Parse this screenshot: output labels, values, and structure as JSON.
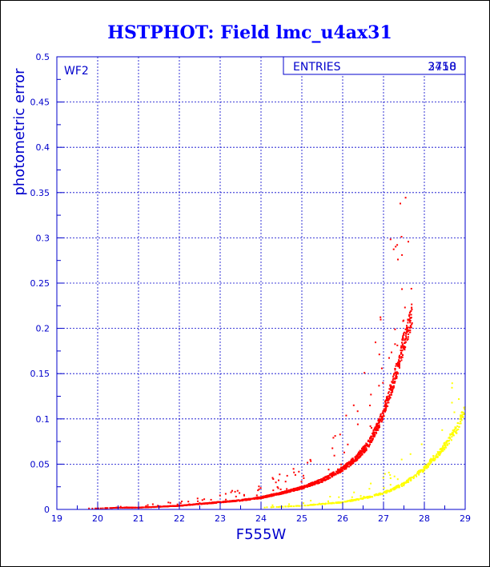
{
  "chart_data": {
    "type": "scatter",
    "title": "HSTPHOT: Field lmc_u4ax31",
    "xlabel": "F555W",
    "ylabel": "photometric error",
    "xlim": [
      19,
      29
    ],
    "ylim": [
      0,
      0.5
    ],
    "xticks": [
      "19",
      "20",
      "21",
      "22",
      "23",
      "24",
      "25",
      "26",
      "27",
      "28",
      "29"
    ],
    "yticks": [
      "0",
      "0.05",
      "0.1",
      "0.15",
      "0.2",
      "0.25",
      "0.3",
      "0.35",
      "0.4",
      "0.45",
      "0.5"
    ],
    "grid": true,
    "panel_label": "WF2",
    "stats_box": {
      "label": "ENTRIES",
      "values": [
        "3718",
        "2450"
      ]
    },
    "colors": {
      "axes": "#0000cc",
      "grid": "#0000cc",
      "title": "#0000ff",
      "series_red": "#ff0000",
      "series_yellow": "#ffff00"
    },
    "series": [
      {
        "color": "red",
        "curve_points": [
          [
            19.6,
            0.001
          ],
          [
            20.0,
            0.001
          ],
          [
            20.5,
            0.002
          ],
          [
            21.0,
            0.002
          ],
          [
            21.5,
            0.003
          ],
          [
            22.0,
            0.004
          ],
          [
            22.5,
            0.006
          ],
          [
            23.0,
            0.008
          ],
          [
            23.5,
            0.01
          ],
          [
            24.0,
            0.013
          ],
          [
            24.5,
            0.018
          ],
          [
            25.0,
            0.024
          ],
          [
            25.5,
            0.032
          ],
          [
            26.0,
            0.045
          ],
          [
            26.3,
            0.055
          ],
          [
            26.6,
            0.07
          ],
          [
            26.9,
            0.095
          ],
          [
            27.1,
            0.12
          ],
          [
            27.3,
            0.15
          ],
          [
            27.5,
            0.185
          ],
          [
            27.7,
            0.215
          ]
        ],
        "count": 3718
      },
      {
        "color": "yellow",
        "curve_points": [
          [
            24.0,
            0.002
          ],
          [
            25.0,
            0.004
          ],
          [
            26.0,
            0.008
          ],
          [
            26.5,
            0.012
          ],
          [
            27.0,
            0.018
          ],
          [
            27.5,
            0.028
          ],
          [
            28.0,
            0.045
          ],
          [
            28.5,
            0.07
          ],
          [
            28.8,
            0.09
          ],
          [
            29.0,
            0.11
          ]
        ],
        "count": 2450
      }
    ]
  }
}
